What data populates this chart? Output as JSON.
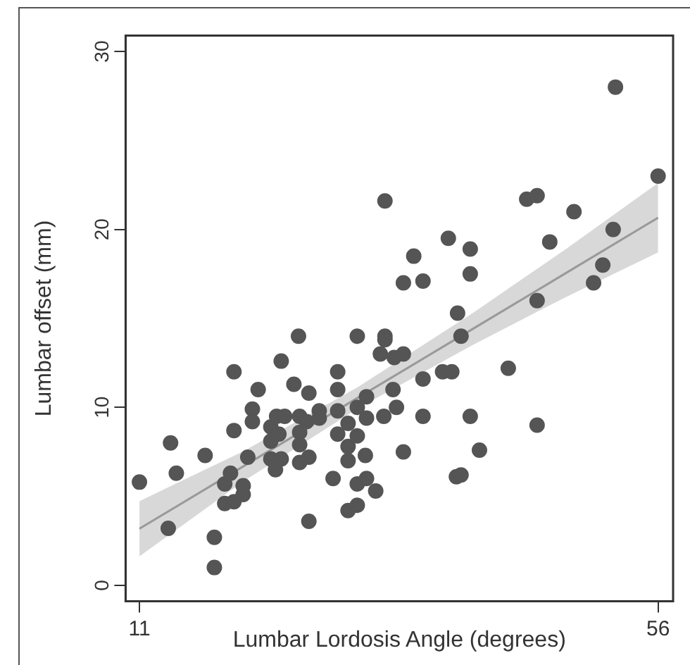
{
  "chart_data": {
    "type": "scatter",
    "xlabel": "Lumbar Lordosis Angle (degrees)",
    "ylabel": "Lumbar offset (mm)",
    "xlim": [
      9.8,
      57.3
    ],
    "ylim": [
      -0.9,
      30.9
    ],
    "xticks": [
      11,
      56
    ],
    "yticks": [
      0,
      10,
      20,
      30
    ],
    "grid": false,
    "legend": false,
    "series": [
      {
        "marker": "circle",
        "color": "#555555",
        "x": [
          11.0,
          13.7,
          13.5,
          14.2,
          16.7,
          17.5,
          17.5,
          18.4,
          18.4,
          18.9,
          19.2,
          19.2,
          19.2,
          20.0,
          20.0,
          20.4,
          20.8,
          20.8,
          21.3,
          22.4,
          22.4,
          22.4,
          22.8,
          22.9,
          23.1,
          23.3,
          23.3,
          23.6,
          24.4,
          24.8,
          24.9,
          24.9,
          24.9,
          24.9,
          25.5,
          25.7,
          25.7,
          25.7,
          26.6,
          26.6,
          27.8,
          28.2,
          28.2,
          28.2,
          28.2,
          29.1,
          29.1,
          29.1,
          29.1,
          29.9,
          29.9,
          29.9,
          29.9,
          29.9,
          30.6,
          30.7,
          30.7,
          30.7,
          31.5,
          31.9,
          32.3,
          32.3,
          32.3,
          32.2,
          33.0,
          33.1,
          33.3,
          33.9,
          33.9,
          33.9,
          34.8,
          35.6,
          35.6,
          35.6,
          37.3,
          38.1,
          37.8,
          38.5,
          38.9,
          38.6,
          38.9,
          39.7,
          39.7,
          39.7,
          40.5,
          43.0,
          44.6,
          45.5,
          45.5,
          45.5,
          46.6,
          48.7,
          50.4,
          51.2,
          52.1,
          52.3,
          56.0
        ],
        "values": [
          5.8,
          8.0,
          3.2,
          6.3,
          7.3,
          2.7,
          1.0,
          5.7,
          4.6,
          6.3,
          4.7,
          8.7,
          12.0,
          5.6,
          5.1,
          7.2,
          9.9,
          9.2,
          11.0,
          8.9,
          8.1,
          7.1,
          6.5,
          9.5,
          8.5,
          7.1,
          12.6,
          9.5,
          11.3,
          14.0,
          9.5,
          8.6,
          7.9,
          6.9,
          9.2,
          10.8,
          7.2,
          3.6,
          9.8,
          9.4,
          6.0,
          12.0,
          11.0,
          9.8,
          8.5,
          9.1,
          7.8,
          7.0,
          4.2,
          14.0,
          10.0,
          8.4,
          5.7,
          4.5,
          7.3,
          9.4,
          10.6,
          6.0,
          5.3,
          13.0,
          14.0,
          13.8,
          21.6,
          9.5,
          11.0,
          12.8,
          10.0,
          13.0,
          17.0,
          7.5,
          18.5,
          17.1,
          11.6,
          9.5,
          12.0,
          12.0,
          19.5,
          6.1,
          6.2,
          15.3,
          14.0,
          18.9,
          17.5,
          9.5,
          7.6,
          12.2,
          21.7,
          21.9,
          16.0,
          9.0,
          19.3,
          21.0,
          17.0,
          18.0,
          20.0,
          28.0,
          23.0
        ]
      },
      {
        "type": "line",
        "marker": "none",
        "color": "#999999",
        "x": [
          11,
          20,
          30,
          40,
          48,
          56
        ],
        "values": [
          3.18,
          6.68,
          10.56,
          14.44,
          17.55,
          20.66
        ],
        "lower": [
          1.63,
          5.83,
          9.96,
          13.54,
          16.2,
          18.71
        ],
        "upper": [
          4.73,
          7.53,
          11.16,
          15.34,
          18.9,
          22.61
        ]
      }
    ]
  }
}
